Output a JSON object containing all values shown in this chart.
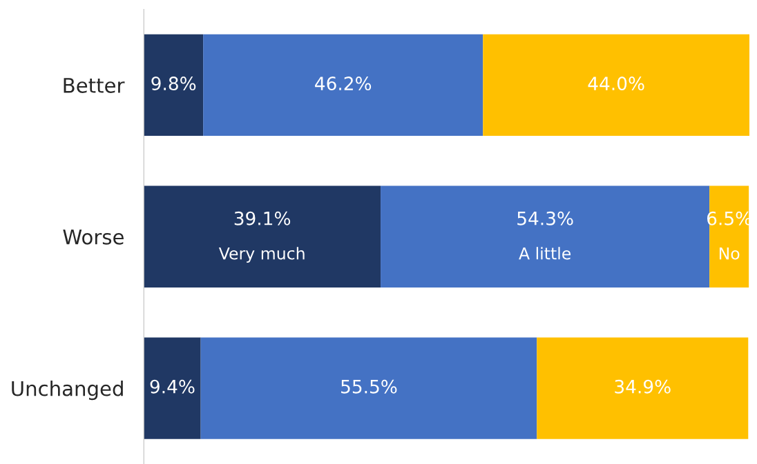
{
  "chart_data": {
    "type": "bar",
    "orientation": "horizontal",
    "stacked": true,
    "categories": [
      "Better",
      "Worse",
      "Unchanged"
    ],
    "series": [
      {
        "name": "Very much",
        "color": "#203864",
        "values": [
          9.8,
          39.1,
          9.4
        ],
        "value_labels": [
          "9.8%",
          "39.1%",
          "9.4%"
        ]
      },
      {
        "name": "A little",
        "color": "#4472c4",
        "values": [
          46.2,
          54.3,
          55.5
        ],
        "value_labels": [
          "46.2%",
          "54.3%",
          "55.5%"
        ]
      },
      {
        "name": "No",
        "color": "#ffc000",
        "values": [
          44.0,
          6.5,
          34.9
        ],
        "value_labels": [
          "44.0%",
          "6.5%",
          "34.9%"
        ]
      }
    ],
    "xlim": [
      0,
      100
    ],
    "tick_labels": "y",
    "grid": false,
    "legend": false
  }
}
